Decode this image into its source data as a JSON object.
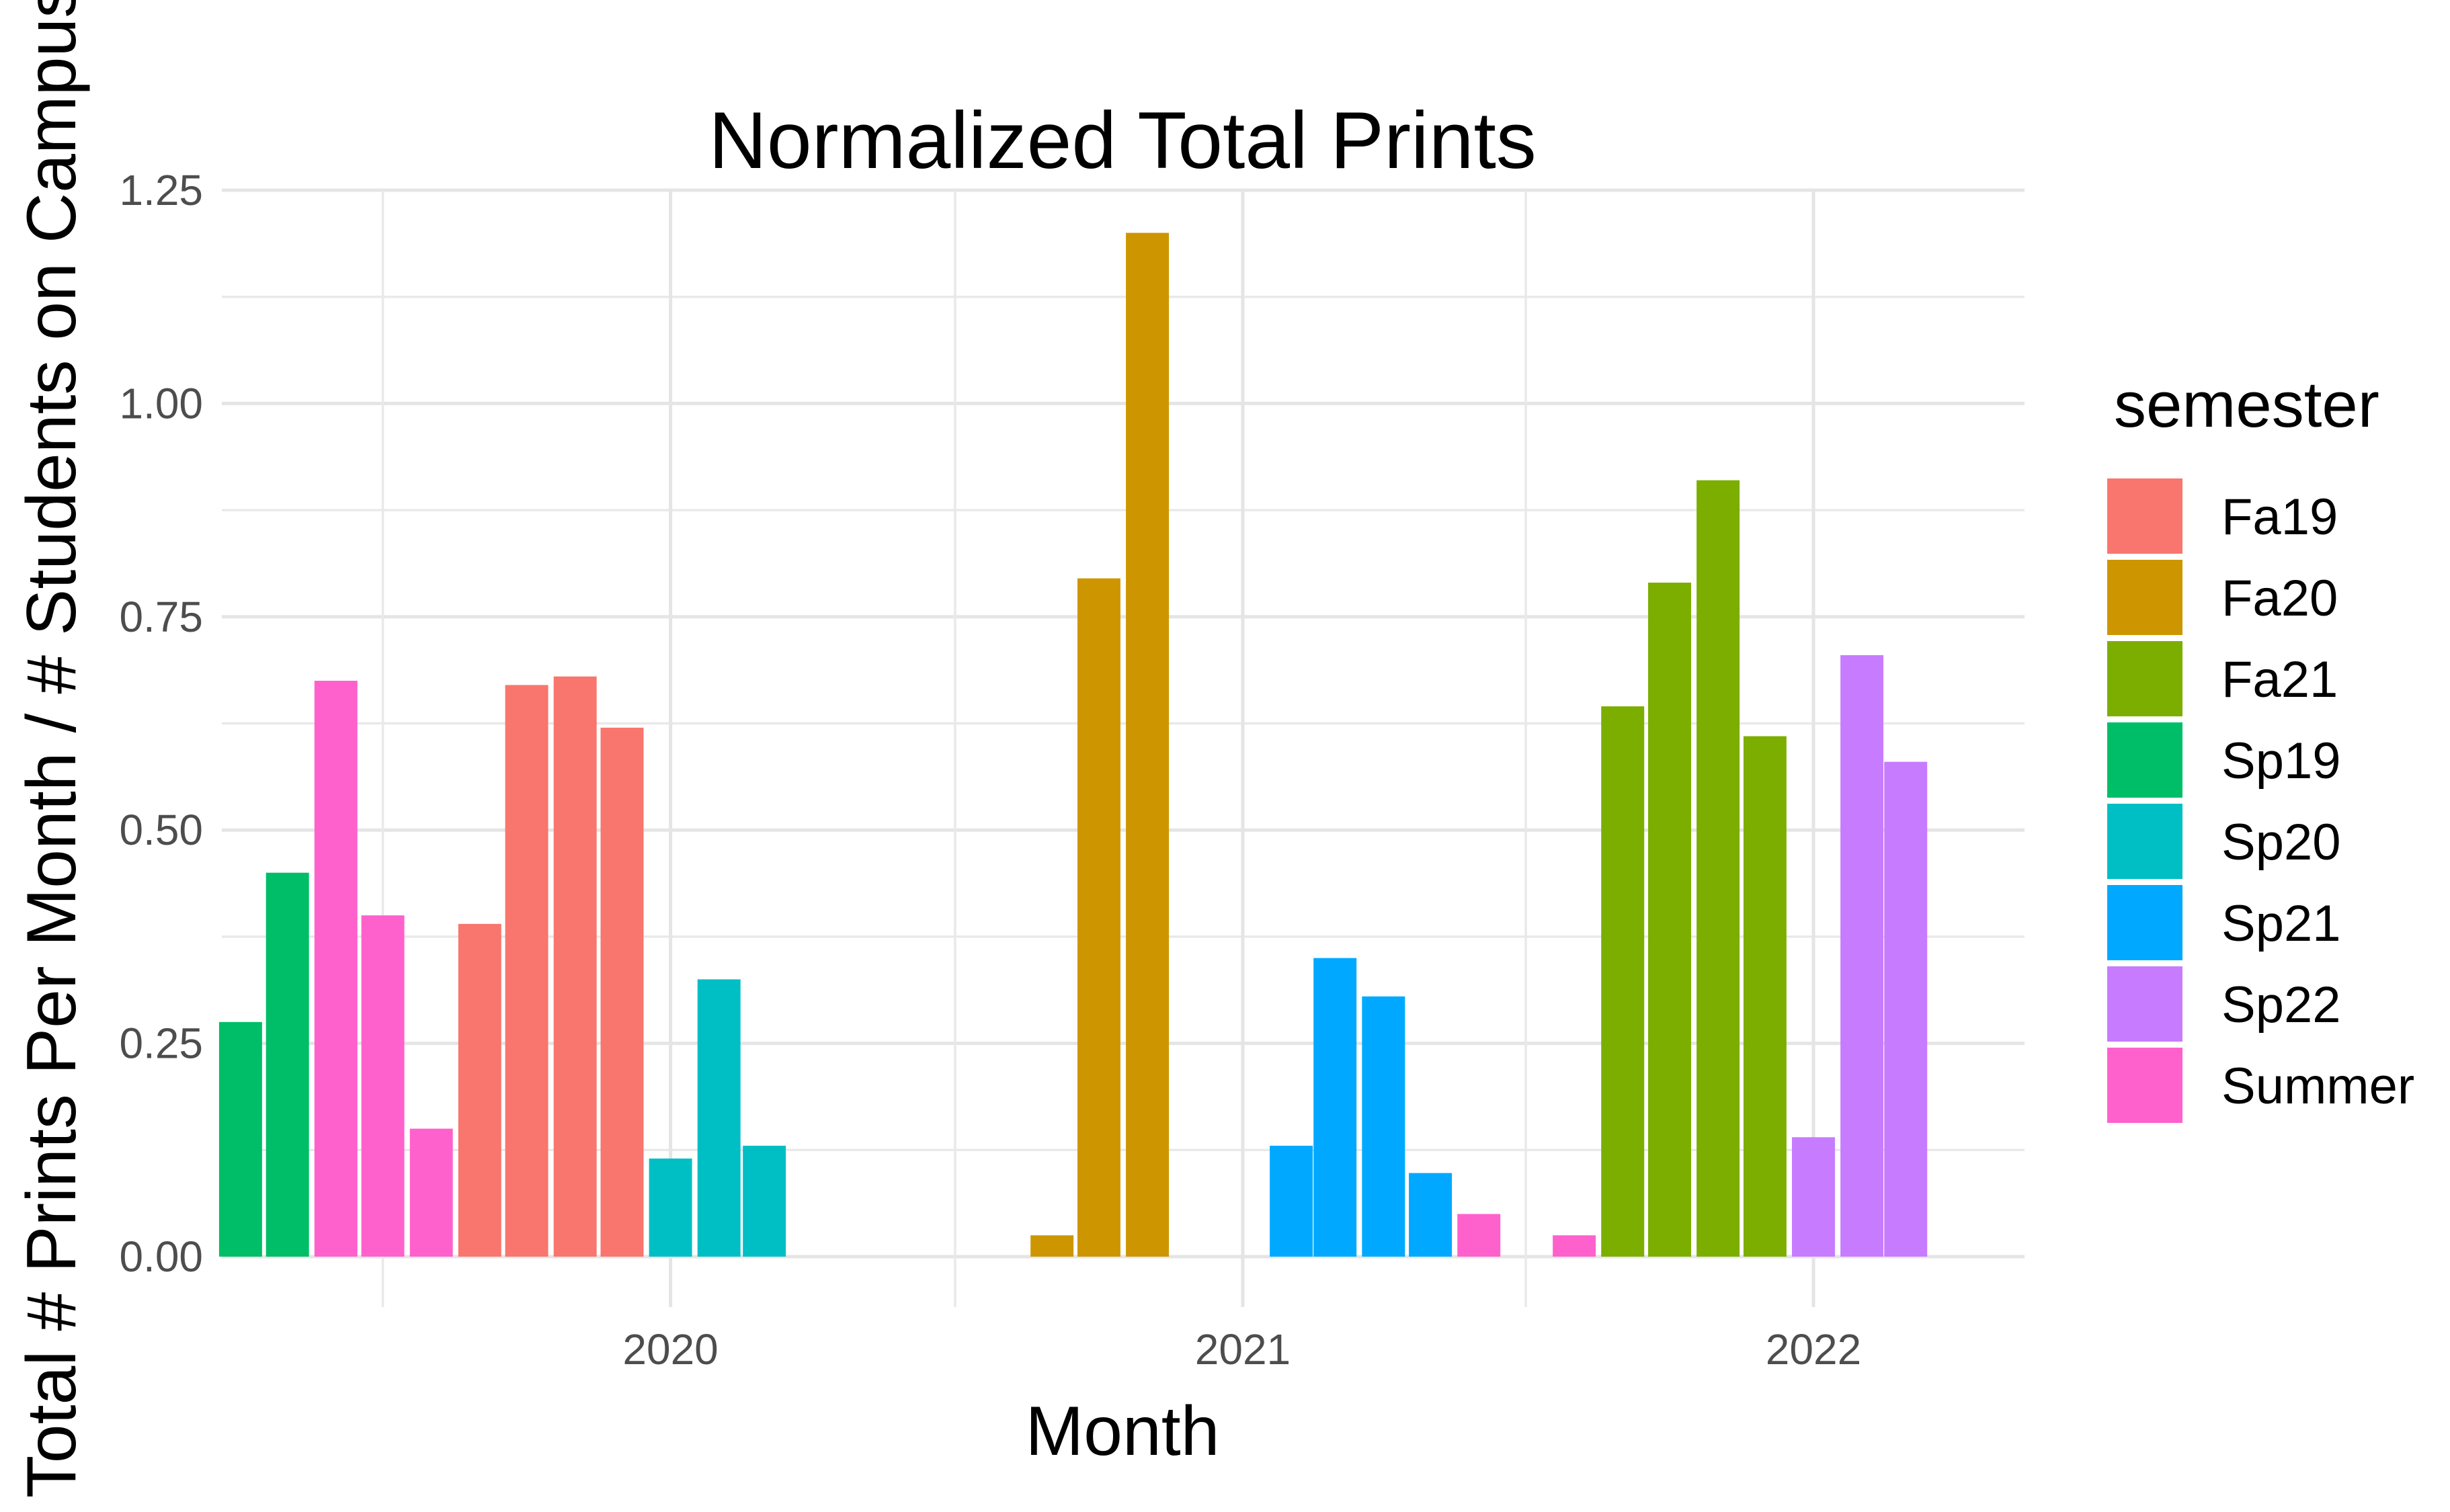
{
  "chart_data": {
    "type": "bar",
    "title": "Normalized Total Prints",
    "xlabel": "Month",
    "ylabel": "Total # Prints Per Month / # Students on Campus",
    "ylim": [
      0,
      1.25
    ],
    "y_ticks": [
      "0.00",
      "0.25",
      "0.50",
      "0.75",
      "1.00",
      "1.25"
    ],
    "x_ticks": [
      "2020",
      "2021",
      "2022"
    ],
    "xlim": [
      "2019-03-20",
      "2022-05-16"
    ],
    "grid": true,
    "legend": {
      "title": "semester",
      "placement": "right"
    },
    "series": [
      {
        "name": "Fa19",
        "color": "#F8766D",
        "points": [
          {
            "x": "2019-09-01",
            "y": 0.39
          },
          {
            "x": "2019-10-01",
            "y": 0.67
          },
          {
            "x": "2019-11-01",
            "y": 0.68
          },
          {
            "x": "2019-12-01",
            "y": 0.62
          }
        ]
      },
      {
        "name": "Fa20",
        "color": "#CD9600",
        "points": [
          {
            "x": "2020-09-01",
            "y": 0.025
          },
          {
            "x": "2020-10-01",
            "y": 0.795
          },
          {
            "x": "2020-11-01",
            "y": 1.2
          }
        ]
      },
      {
        "name": "Fa21",
        "color": "#7CAE00",
        "points": [
          {
            "x": "2021-09-01",
            "y": 0.645
          },
          {
            "x": "2021-10-01",
            "y": 0.79
          },
          {
            "x": "2021-11-01",
            "y": 0.91
          },
          {
            "x": "2021-12-01",
            "y": 0.61
          }
        ]
      },
      {
        "name": "Sp19",
        "color": "#00BE67",
        "points": [
          {
            "x": "2019-04-01",
            "y": 0.275
          },
          {
            "x": "2019-05-01",
            "y": 0.45
          }
        ]
      },
      {
        "name": "Sp20",
        "color": "#00BFC4",
        "points": [
          {
            "x": "2020-01-01",
            "y": 0.115
          },
          {
            "x": "2020-02-01",
            "y": 0.325
          },
          {
            "x": "2020-03-01",
            "y": 0.13
          }
        ]
      },
      {
        "name": "Sp21",
        "color": "#00A9FF",
        "points": [
          {
            "x": "2021-02-01",
            "y": 0.13
          },
          {
            "x": "2021-03-01",
            "y": 0.35
          },
          {
            "x": "2021-04-01",
            "y": 0.305
          },
          {
            "x": "2021-05-01",
            "y": 0.098
          }
        ]
      },
      {
        "name": "Sp22",
        "color": "#C77CFF",
        "points": [
          {
            "x": "2022-01-01",
            "y": 0.14
          },
          {
            "x": "2022-02-01",
            "y": 0.705
          },
          {
            "x": "2022-03-01",
            "y": 0.58
          }
        ]
      },
      {
        "name": "Summer",
        "color": "#FF61CC",
        "points": [
          {
            "x": "2019-06-01",
            "y": 0.675
          },
          {
            "x": "2019-07-01",
            "y": 0.4
          },
          {
            "x": "2019-08-01",
            "y": 0.15
          },
          {
            "x": "2021-06-01",
            "y": 0.05
          },
          {
            "x": "2021-08-01",
            "y": 0.025
          }
        ]
      }
    ]
  }
}
